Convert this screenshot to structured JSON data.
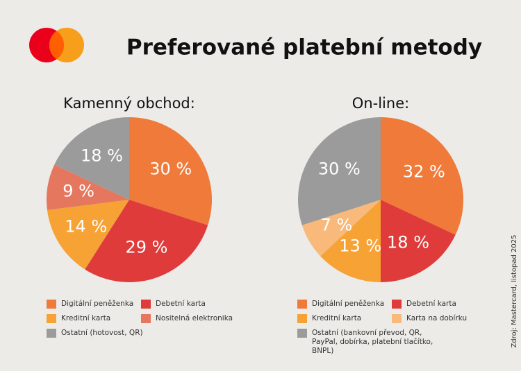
{
  "header": {
    "title": "Preferované platební metody"
  },
  "source": "Zdroj: Mastercard, listopad 2025",
  "chart_data": [
    {
      "type": "pie",
      "title": "Kamenný obchod:",
      "categories": [
        "Digitální peněženka",
        "Debetní karta",
        "Kreditní karta",
        "Nositelná elektronika",
        "Ostatní (hotovost, QR)"
      ],
      "values": [
        30,
        29,
        14,
        9,
        18
      ],
      "value_labels": [
        "30 %",
        "29 %",
        "14 %",
        "9 %",
        "18 %"
      ],
      "colors": [
        "#ef7a3a",
        "#df3b3b",
        "#f6a234",
        "#e6775f",
        "#9b9b9b"
      ]
    },
    {
      "type": "pie",
      "title": "On-line:",
      "categories": [
        "Digitální peněženka",
        "Debetní karta",
        "Kreditní karta",
        "Karta na dobírku",
        "Ostatní (bankovní převod, QR, PayPal, dobírka, platební tlačítko, BNPL)"
      ],
      "values": [
        32,
        18,
        13,
        7,
        30
      ],
      "value_labels": [
        "32 %",
        "18 %",
        "13 %",
        "7 %",
        "30 %"
      ],
      "colors": [
        "#ef7a3a",
        "#df3b3b",
        "#f6a234",
        "#f8b97a",
        "#9b9b9b"
      ]
    }
  ]
}
